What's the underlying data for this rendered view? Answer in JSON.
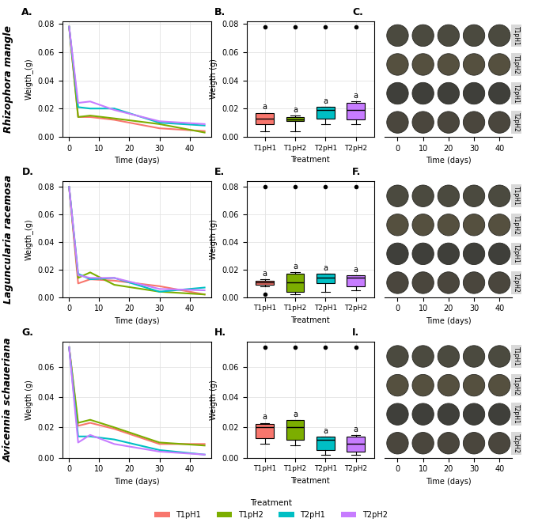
{
  "legend_title": "Treatment",
  "legend": "lower center",
  "chart_data": [
    {
      "type": "line",
      "panel": "A.",
      "row_label": "Rhizophora mangle",
      "xlabel": "Time (days)",
      "ylabel": "Weigth_(g)",
      "grid": true,
      "x": [
        0,
        3,
        7,
        15,
        30,
        45
      ],
      "xlim": [
        -2.25,
        47.25
      ],
      "xticks": [
        0,
        10,
        20,
        30,
        40
      ],
      "ylim": [
        0,
        0.082
      ],
      "yticks": [
        {
          "value": 0,
          "label": "0.00"
        },
        {
          "value": 0.02,
          "label": "0.02"
        },
        {
          "value": 0.04,
          "label": "0.04"
        },
        {
          "value": 0.06,
          "label": "0.06"
        },
        {
          "value": 0.08,
          "label": "0.08"
        }
      ],
      "series": [
        {
          "name": "T1pH1",
          "color": "#F8766D",
          "values": [
            0.078,
            0.014,
            0.014,
            0.012,
            0.006,
            0.004
          ]
        },
        {
          "name": "T1pH2",
          "color": "#7CAE00",
          "values": [
            0.078,
            0.014,
            0.015,
            0.013,
            0.009,
            0.003
          ]
        },
        {
          "name": "T2pH1",
          "color": "#00BFC4",
          "values": [
            0.078,
            0.021,
            0.02,
            0.02,
            0.01,
            0.008
          ]
        },
        {
          "name": "T2pH2",
          "color": "#C77CFF",
          "values": [
            0.078,
            0.024,
            0.025,
            0.019,
            0.011,
            0.009
          ]
        }
      ]
    },
    {
      "type": "box",
      "panel": "B.",
      "xlabel": "Treatment",
      "ylabel": "Weigth (g)",
      "grid": true,
      "categories": [
        "T1pH1",
        "T1pH2",
        "T2pH1",
        "T2pH2"
      ],
      "colors": [
        "#F8766D",
        "#7CAE00",
        "#00BFC4",
        "#C77CFF"
      ],
      "annotations": [
        "a",
        "a",
        "a",
        "a"
      ],
      "ylim": [
        0,
        0.082
      ],
      "yticks": [
        {
          "value": 0,
          "label": "0.00"
        },
        {
          "value": 0.02,
          "label": "0.02"
        },
        {
          "value": 0.04,
          "label": "0.04"
        },
        {
          "value": 0.06,
          "label": "0.06"
        },
        {
          "value": 0.08,
          "label": "0.08"
        }
      ],
      "boxes": [
        {
          "whisker_low": 0.004,
          "q1": 0.009,
          "median": 0.013,
          "q3": 0.017,
          "whisker_high": 0.017,
          "outliers": [
            0.078
          ]
        },
        {
          "whisker_low": 0.004,
          "q1": 0.011,
          "median": 0.012,
          "q3": 0.014,
          "whisker_high": 0.015,
          "outliers": [
            0.078
          ]
        },
        {
          "whisker_low": 0.009,
          "q1": 0.013,
          "median": 0.019,
          "q3": 0.021,
          "whisker_high": 0.021,
          "outliers": [
            0.078
          ]
        },
        {
          "whisker_low": 0.009,
          "q1": 0.012,
          "median": 0.019,
          "q3": 0.024,
          "whisker_high": 0.025,
          "outliers": [
            0.078
          ]
        }
      ]
    },
    {
      "type": "image",
      "panel": "C.",
      "xlabel": "Time (days)",
      "grid": false,
      "xlim": [
        -5,
        45
      ],
      "xticks": [
        0,
        10,
        20,
        30,
        40
      ],
      "row_labels": [
        "T1pH1",
        "T1pH2",
        "T2pH1",
        "T2pH2"
      ]
    },
    {
      "type": "line",
      "panel": "D.",
      "row_label": "Laguncularia racemosa",
      "xlabel": "Time (days)",
      "ylabel": "Weigth_(g)",
      "grid": true,
      "x": [
        0,
        3,
        7,
        15,
        30,
        45
      ],
      "xlim": [
        -2.25,
        47.25
      ],
      "xticks": [
        0,
        10,
        20,
        30,
        40
      ],
      "ylim": [
        0,
        0.084
      ],
      "yticks": [
        {
          "value": 0,
          "label": "0.00"
        },
        {
          "value": 0.02,
          "label": "0.02"
        },
        {
          "value": 0.04,
          "label": "0.04"
        },
        {
          "value": 0.06,
          "label": "0.06"
        },
        {
          "value": 0.08,
          "label": "0.08"
        }
      ],
      "series": [
        {
          "name": "T1pH1",
          "color": "#F8766D",
          "values": [
            0.08,
            0.01,
            0.013,
            0.012,
            0.008,
            0.002
          ]
        },
        {
          "name": "T1pH2",
          "color": "#7CAE00",
          "values": [
            0.08,
            0.014,
            0.018,
            0.009,
            0.004,
            0.002
          ]
        },
        {
          "name": "T2pH1",
          "color": "#00BFC4",
          "values": [
            0.08,
            0.017,
            0.013,
            0.014,
            0.004,
            0.007
          ]
        },
        {
          "name": "T2pH2",
          "color": "#C77CFF",
          "values": [
            0.08,
            0.016,
            0.014,
            0.014,
            0.006,
            0.005
          ]
        }
      ]
    },
    {
      "type": "box",
      "panel": "E.",
      "xlabel": "Treatment",
      "ylabel": "Weigth (g)",
      "grid": true,
      "categories": [
        "T1pH1",
        "T1pH2",
        "T2pH1",
        "T2pH2"
      ],
      "colors": [
        "#F8766D",
        "#7CAE00",
        "#00BFC4",
        "#C77CFF"
      ],
      "annotations": [
        "a",
        "a",
        "a",
        "a"
      ],
      "ylim": [
        0,
        0.084
      ],
      "yticks": [
        {
          "value": 0,
          "label": "0.00"
        },
        {
          "value": 0.02,
          "label": "0.02"
        },
        {
          "value": 0.04,
          "label": "0.04"
        },
        {
          "value": 0.06,
          "label": "0.06"
        },
        {
          "value": 0.08,
          "label": "0.08"
        }
      ],
      "boxes": [
        {
          "whisker_low": 0.008,
          "q1": 0.009,
          "median": 0.011,
          "q3": 0.012,
          "whisker_high": 0.013,
          "outliers": [
            0.002,
            0.08
          ]
        },
        {
          "whisker_low": 0.002,
          "q1": 0.004,
          "median": 0.011,
          "q3": 0.017,
          "whisker_high": 0.018,
          "outliers": [
            0.08
          ]
        },
        {
          "whisker_low": 0.004,
          "q1": 0.01,
          "median": 0.014,
          "q3": 0.017,
          "whisker_high": 0.017,
          "outliers": [
            0.08
          ]
        },
        {
          "whisker_low": 0.005,
          "q1": 0.008,
          "median": 0.014,
          "q3": 0.016,
          "whisker_high": 0.016,
          "outliers": [
            0.08
          ]
        }
      ]
    },
    {
      "type": "image",
      "panel": "F.",
      "xlabel": "Time (days)",
      "grid": false,
      "xlim": [
        -5,
        45
      ],
      "xticks": [
        0,
        10,
        20,
        30,
        40
      ],
      "row_labels": [
        "T1pH1",
        "T1pH2",
        "T2pH1",
        "T2pH2"
      ]
    },
    {
      "type": "line",
      "panel": "G.",
      "row_label": "Avicennia schaueriana",
      "xlabel": "Time (days)",
      "ylabel": "Weigth (g)",
      "grid": true,
      "x": [
        0,
        3,
        7,
        15,
        30,
        45
      ],
      "xlim": [
        -2.25,
        47.25
      ],
      "xticks": [
        0,
        10,
        20,
        30,
        40
      ],
      "ylim": [
        0,
        0.0765
      ],
      "yticks": [
        {
          "value": 0,
          "label": "0.00"
        },
        {
          "value": 0.02,
          "label": "0.02"
        },
        {
          "value": 0.04,
          "label": "0.04"
        },
        {
          "value": 0.06,
          "label": "0.06"
        }
      ],
      "series": [
        {
          "name": "T1pH1",
          "color": "#F8766D",
          "values": [
            0.073,
            0.021,
            0.023,
            0.019,
            0.009,
            0.009
          ]
        },
        {
          "name": "T1pH2",
          "color": "#7CAE00",
          "values": [
            0.073,
            0.023,
            0.025,
            0.02,
            0.01,
            0.008
          ]
        },
        {
          "name": "T2pH1",
          "color": "#00BFC4",
          "values": [
            0.073,
            0.014,
            0.014,
            0.012,
            0.005,
            0.002
          ]
        },
        {
          "name": "T2pH2",
          "color": "#C77CFF",
          "values": [
            0.073,
            0.01,
            0.015,
            0.009,
            0.004,
            0.002
          ]
        }
      ]
    },
    {
      "type": "box",
      "panel": "H.",
      "xlabel": "Treatment",
      "ylabel": "Weigth (g)",
      "grid": true,
      "categories": [
        "T1pH1",
        "T1pH2",
        "T2pH1",
        "T2pH2"
      ],
      "colors": [
        "#F8766D",
        "#7CAE00",
        "#00BFC4",
        "#C77CFF"
      ],
      "annotations": [
        "a",
        "a",
        "a",
        "a"
      ],
      "ylim": [
        0,
        0.0765
      ],
      "yticks": [
        {
          "value": 0,
          "label": "0.00"
        },
        {
          "value": 0.02,
          "label": "0.02"
        },
        {
          "value": 0.04,
          "label": "0.04"
        },
        {
          "value": 0.06,
          "label": "0.06"
        }
      ],
      "boxes": [
        {
          "whisker_low": 0.009,
          "q1": 0.013,
          "median": 0.02,
          "q3": 0.022,
          "whisker_high": 0.023,
          "outliers": [
            0.073
          ]
        },
        {
          "whisker_low": 0.008,
          "q1": 0.012,
          "median": 0.02,
          "q3": 0.025,
          "whisker_high": 0.025,
          "outliers": [
            0.073
          ]
        },
        {
          "whisker_low": 0.002,
          "q1": 0.005,
          "median": 0.012,
          "q3": 0.014,
          "whisker_high": 0.014,
          "outliers": [
            0.073
          ]
        },
        {
          "whisker_low": 0.002,
          "q1": 0.004,
          "median": 0.009,
          "q3": 0.014,
          "whisker_high": 0.015,
          "outliers": [
            0.073
          ]
        }
      ]
    },
    {
      "type": "image",
      "panel": "I.",
      "xlabel": "Time (days)",
      "grid": false,
      "xlim": [
        -5,
        45
      ],
      "xticks": [
        0,
        10,
        20,
        30,
        40
      ],
      "row_labels": [
        "T1pH1",
        "T1pH2",
        "T2pH1",
        "T2pH2"
      ]
    }
  ]
}
